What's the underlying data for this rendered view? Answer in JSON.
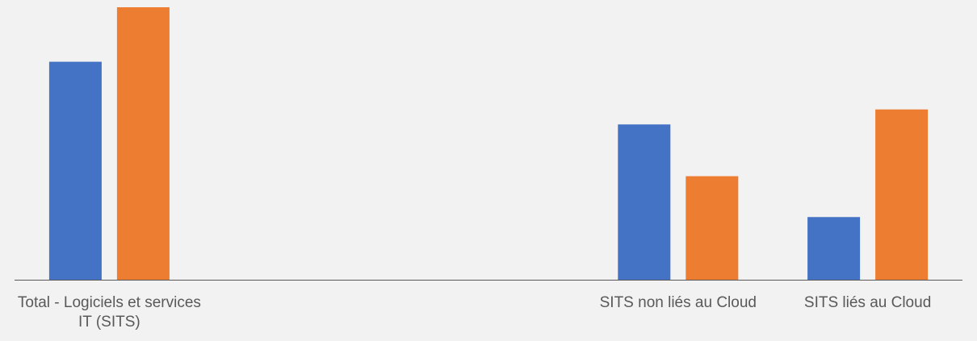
{
  "chart_data": {
    "type": "bar",
    "title": "",
    "xlabel": "",
    "ylabel": "",
    "categories": [
      [
        "Total - Logiciels et services",
        "IT (SITS)"
      ],
      [
        "SITS non liés au Cloud"
      ],
      [
        "SITS liés au Cloud"
      ]
    ],
    "category_slots": [
      0,
      3,
      4
    ],
    "slot_count": 5,
    "series": [
      {
        "color": "#4472c4",
        "values": [
          80,
          57,
          23
        ]
      },
      {
        "color": "#ed7d31",
        "values": [
          100,
          38,
          62.5
        ]
      }
    ],
    "ylim": [
      0,
      100
    ],
    "grid": false,
    "legend": "none",
    "colors": {
      "background": "#f2f2f2",
      "axis": "#595959",
      "label": "#595959"
    }
  }
}
